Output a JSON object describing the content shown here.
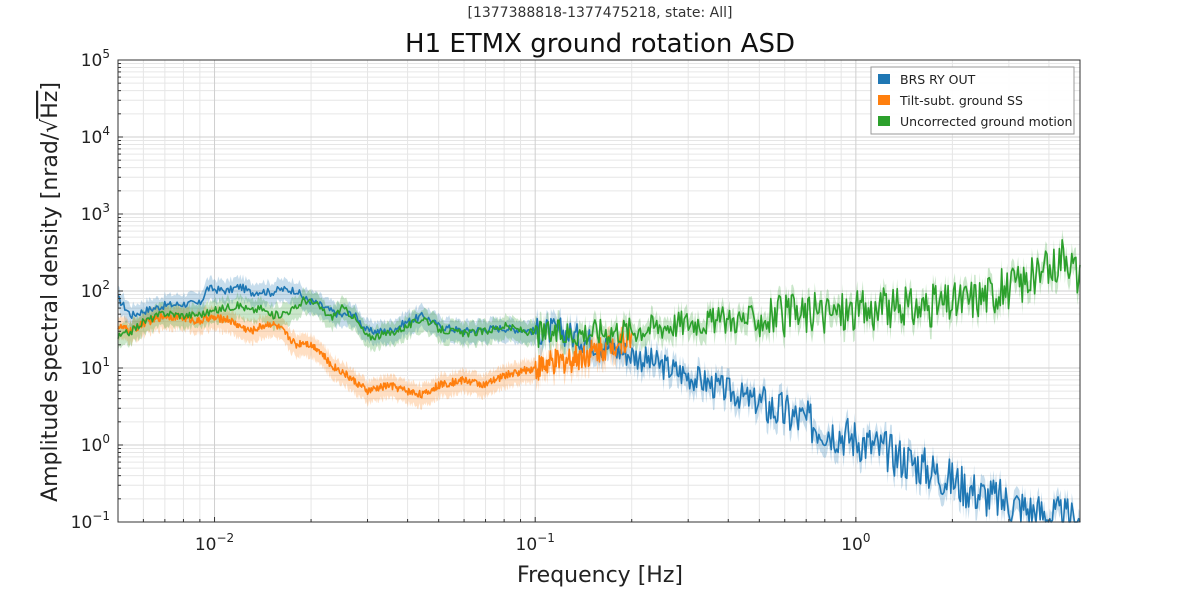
{
  "chart_data": {
    "type": "line",
    "subtitle": "[1377388818-1377475218, state: All]",
    "title": "H1 ETMX ground rotation ASD",
    "xlabel": "Frequency [Hz]",
    "ylabel_prefix": "Amplitude spectral density [nrad/",
    "ylabel_root": "√",
    "ylabel_unit": "Hz",
    "ylabel_suffix": "]",
    "xscale": "log",
    "yscale": "log",
    "xlim": [
      0.005,
      5
    ],
    "ylim": [
      0.1,
      100000
    ],
    "grid": true,
    "legend_position": "top-right",
    "x_ticks": [
      {
        "value": 0.01,
        "base": "10",
        "exp": "−2"
      },
      {
        "value": 0.1,
        "base": "10",
        "exp": "−1"
      },
      {
        "value": 1,
        "base": "10",
        "exp": "0"
      }
    ],
    "y_ticks": [
      {
        "value": 0.1,
        "base": "10",
        "exp": "−1"
      },
      {
        "value": 1,
        "base": "10",
        "exp": "0"
      },
      {
        "value": 10,
        "base": "10",
        "exp": "1"
      },
      {
        "value": 100,
        "base": "10",
        "exp": "2"
      },
      {
        "value": 1000,
        "base": "10",
        "exp": "3"
      },
      {
        "value": 10000,
        "base": "10",
        "exp": "4"
      },
      {
        "value": 100000,
        "base": "10",
        "exp": "5"
      }
    ],
    "series": [
      {
        "name": "BRS RY OUT",
        "color": "#1f77b4",
        "x": [
          0.005,
          0.0055,
          0.006,
          0.007,
          0.008,
          0.009,
          0.0095,
          0.011,
          0.012,
          0.013,
          0.014,
          0.015,
          0.016,
          0.018,
          0.019,
          0.021,
          0.023,
          0.025,
          0.027,
          0.03,
          0.035,
          0.04,
          0.045,
          0.05,
          0.06,
          0.07,
          0.08,
          0.1,
          0.12,
          0.15,
          0.2,
          0.3,
          0.4,
          0.5,
          0.7,
          1.0,
          1.5,
          2.0,
          2.5,
          3.0,
          3.5,
          4.0,
          5.0
        ],
        "values": [
          80,
          48,
          55,
          65,
          68,
          68,
          108,
          100,
          115,
          95,
          100,
          95,
          105,
          102,
          80,
          68,
          55,
          48,
          52,
          30,
          30,
          40,
          48,
          35,
          30,
          32,
          33,
          30,
          30,
          22,
          15,
          8,
          5,
          3.5,
          2.0,
          1.2,
          0.6,
          0.35,
          0.22,
          0.18,
          0.14,
          0.12,
          0.1
        ]
      },
      {
        "name": "Tilt-subt. ground SS",
        "color": "#ff7f0e",
        "x": [
          0.005,
          0.0055,
          0.006,
          0.007,
          0.008,
          0.009,
          0.0095,
          0.011,
          0.012,
          0.013,
          0.014,
          0.015,
          0.016,
          0.018,
          0.019,
          0.021,
          0.023,
          0.025,
          0.027,
          0.03,
          0.035,
          0.04,
          0.045,
          0.05,
          0.06,
          0.07,
          0.08,
          0.1,
          0.12,
          0.15,
          0.17,
          0.2
        ],
        "values": [
          35,
          30,
          38,
          48,
          45,
          40,
          45,
          43,
          35,
          30,
          35,
          38,
          33,
          20,
          22,
          18,
          11,
          9,
          7,
          5,
          6,
          5,
          4.5,
          6,
          7,
          6,
          8,
          10,
          12,
          16,
          20,
          25
        ]
      },
      {
        "name": "Uncorrected ground motion",
        "color": "#2ca02c",
        "x": [
          0.005,
          0.0055,
          0.006,
          0.007,
          0.008,
          0.009,
          0.0095,
          0.011,
          0.012,
          0.013,
          0.014,
          0.015,
          0.016,
          0.018,
          0.019,
          0.021,
          0.023,
          0.025,
          0.027,
          0.03,
          0.035,
          0.04,
          0.045,
          0.05,
          0.06,
          0.07,
          0.08,
          0.1,
          0.12,
          0.15,
          0.2,
          0.3,
          0.4,
          0.5,
          0.7,
          1.0,
          1.5,
          2.0,
          3.0,
          4.0,
          4.5,
          5.0
        ],
        "values": [
          25,
          30,
          40,
          52,
          48,
          50,
          52,
          62,
          65,
          55,
          60,
          48,
          50,
          60,
          78,
          65,
          45,
          60,
          48,
          25,
          28,
          35,
          45,
          32,
          28,
          30,
          35,
          28,
          28,
          30,
          32,
          40,
          42,
          45,
          50,
          55,
          60,
          70,
          110,
          180,
          350,
          140
        ]
      }
    ]
  }
}
